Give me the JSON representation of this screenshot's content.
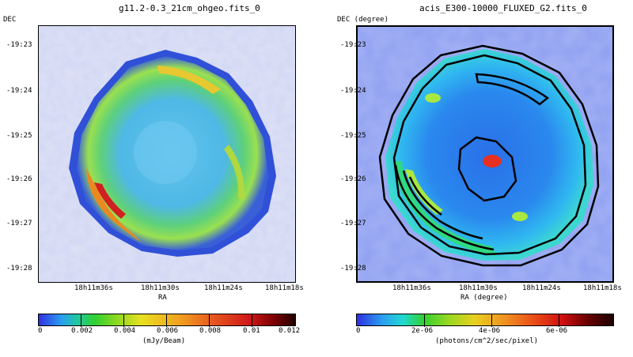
{
  "panels": [
    {
      "title": "g11.2-0.3_21cm_ohgeo.fits_0",
      "dec_label": "DEC",
      "ra_label": "RA",
      "dec_ticks": [
        "-19:23",
        "-19:24",
        "-19:25",
        "-19:26",
        "-19:27",
        "-19:28"
      ],
      "ra_ticks": [
        "18h11m36s",
        "18h11m30s",
        "18h11m24s",
        "18h11m18s"
      ],
      "colorbar": {
        "ticks": [
          "0",
          "0.002",
          "0.004",
          "0.006",
          "0.008",
          "0.01",
          "0.012"
        ],
        "unit": "(mJy/Beam)"
      }
    },
    {
      "title": "acis_E300-10000_FLUXED_G2.fits_0",
      "dec_label": "DEC (degree)",
      "ra_label": "RA (degree)",
      "dec_ticks": [
        "-19:23",
        "-19:24",
        "-19:25",
        "-19:26",
        "-19:27",
        "-19:28"
      ],
      "ra_ticks": [
        "18h11m36s",
        "18h11m30s",
        "18h11m24s",
        "18h11m18s"
      ],
      "colorbar": {
        "ticks": [
          "0",
          "2e-06",
          "4e-06",
          "6e-06"
        ],
        "unit": "(photons/cm^2/sec/pixel)"
      }
    }
  ],
  "colors": {
    "background_blue": "#c8cdf0",
    "shell_green": "#3cc878",
    "interior_blue": "#3aa0e8",
    "bright_rim_red": "#d02020",
    "contour": "#000000"
  }
}
